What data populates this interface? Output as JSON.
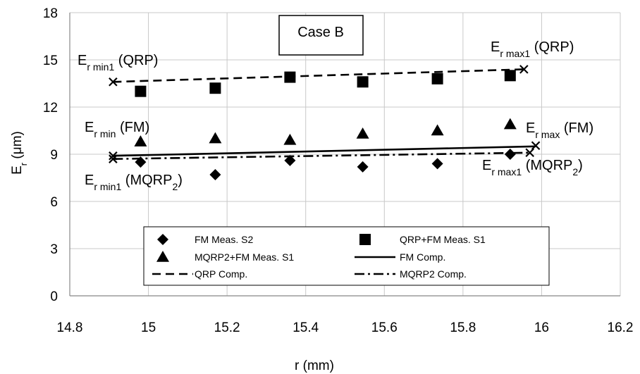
{
  "chart_data": {
    "type": "scatter",
    "xlabel": "r (mm)",
    "ylabel": {
      "main": "E",
      "sub": "r",
      "unit": " (μm)"
    },
    "xlim": [
      14.8,
      16.2
    ],
    "ylim": [
      0,
      18
    ],
    "xticks": [
      14.8,
      15,
      15.2,
      15.4,
      15.6,
      15.8,
      16,
      16.2
    ],
    "yticks": [
      0,
      3,
      6,
      9,
      12,
      15,
      18
    ],
    "grid": true,
    "case_label": "Case B",
    "series": [
      {
        "name": "FM Meas. S2",
        "kind": "points",
        "marker": "diamond",
        "x": [
          14.98,
          15.17,
          15.36,
          15.545,
          15.735,
          15.92
        ],
        "y": [
          8.5,
          7.7,
          8.6,
          8.2,
          8.4,
          9.0
        ]
      },
      {
        "name": "QRP+FM Meas. S1",
        "kind": "points",
        "marker": "square",
        "x": [
          14.98,
          15.17,
          15.36,
          15.545,
          15.735,
          15.92
        ],
        "y": [
          13.0,
          13.2,
          13.9,
          13.6,
          13.8,
          14.0
        ]
      },
      {
        "name": "MQRP2+FM Meas. S1",
        "kind": "points",
        "marker": "triangle",
        "x": [
          14.98,
          15.17,
          15.36,
          15.545,
          15.735,
          15.92
        ],
        "y": [
          9.8,
          10.0,
          9.9,
          10.3,
          10.5,
          10.9
        ]
      },
      {
        "name": "FM Comp.",
        "kind": "line",
        "dash": "solid",
        "x": [
          14.91,
          15.985
        ],
        "y": [
          8.9,
          9.5
        ]
      },
      {
        "name": "QRP Comp.",
        "kind": "line",
        "dash": "dashed",
        "x": [
          14.91,
          15.955
        ],
        "y": [
          13.6,
          14.4
        ]
      },
      {
        "name": "MQRP2 Comp.",
        "kind": "line",
        "dash": "dashdot",
        "x": [
          14.91,
          15.97
        ],
        "y": [
          8.7,
          9.1
        ]
      }
    ],
    "endpoints": [
      {
        "x": 14.91,
        "y": 13.6
      },
      {
        "x": 15.955,
        "y": 14.4
      },
      {
        "x": 14.91,
        "y": 8.9
      },
      {
        "x": 15.985,
        "y": 9.55
      },
      {
        "x": 14.91,
        "y": 8.7
      },
      {
        "x": 15.97,
        "y": 9.1
      }
    ],
    "annotations": [
      {
        "main": "E",
        "sub": "r min1",
        "rest": " (QRP)"
      },
      {
        "main": "E",
        "sub": "r max1",
        "rest": " (QRP)"
      },
      {
        "main": "E",
        "sub": "r min",
        "rest": " (FM)"
      },
      {
        "main": "E",
        "sub": "r max",
        "rest": " (FM)"
      },
      {
        "main": "E",
        "sub": "r min1",
        "rest": " (MQRP",
        "sub2": "2",
        "tail": ")"
      },
      {
        "main": "E",
        "sub": "r max1",
        "rest": " (MQRP",
        "sub2": "2",
        "tail": ")"
      }
    ]
  }
}
